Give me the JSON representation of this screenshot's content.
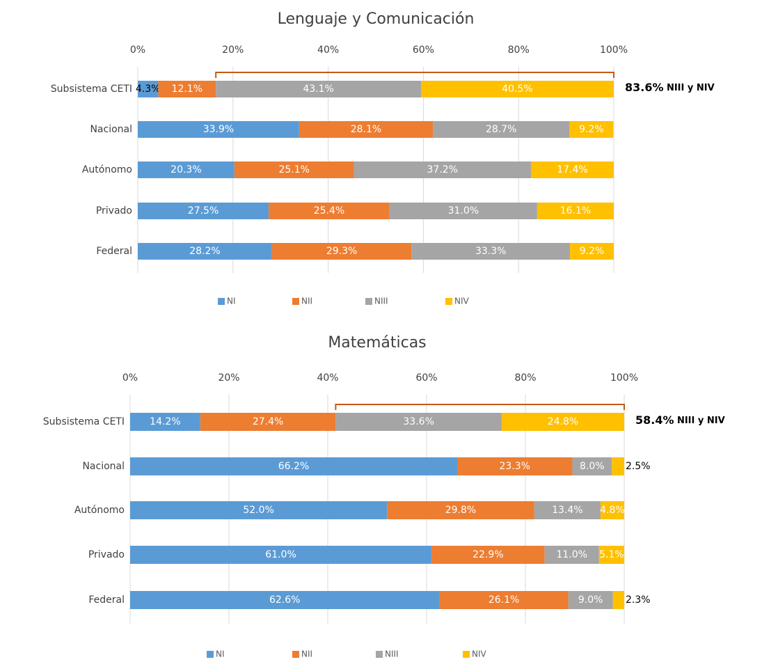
{
  "chart_data": [
    {
      "type": "stacked-bar",
      "title": "Lenguaje y Comunicación",
      "categories": [
        "Subsistema CETI",
        "Nacional",
        "Autónomo",
        "Privado",
        "Federal"
      ],
      "series": [
        {
          "name": "NI",
          "color": "#5b9bd5",
          "values": [
            4.3,
            33.9,
            20.3,
            27.5,
            28.2
          ],
          "value_labels": [
            "4.3%",
            "33.9%",
            "20.3%",
            "27.5%",
            "28.2%"
          ]
        },
        {
          "name": "NII",
          "color": "#ed7d31",
          "values": [
            12.1,
            28.1,
            25.1,
            25.4,
            29.3
          ],
          "value_labels": [
            "12.1%",
            "28.1%",
            "25.1%",
            "25.4%",
            "29.3%"
          ]
        },
        {
          "name": "NIII",
          "color": "#a5a5a5",
          "values": [
            43.1,
            28.7,
            37.2,
            31.0,
            33.3
          ],
          "value_labels": [
            "43.1%",
            "28.7%",
            "37.2%",
            "31.0%",
            "33.3%"
          ]
        },
        {
          "name": "NIV",
          "color": "#ffc000",
          "values": [
            40.5,
            9.2,
            17.4,
            16.1,
            9.2
          ],
          "value_labels": [
            "40.5%",
            "9.2%",
            "17.4%",
            "16.1%",
            "9.2%"
          ]
        }
      ],
      "xlim": [
        0,
        100
      ],
      "xticks": [
        {
          "value": 0,
          "label": "0%"
        },
        {
          "value": 20,
          "label": "20%"
        },
        {
          "value": 40,
          "label": "40%"
        },
        {
          "value": 60,
          "label": "60%"
        },
        {
          "value": 80,
          "label": "80%"
        },
        {
          "value": 100,
          "label": "100%"
        }
      ],
      "grid": true,
      "annotation": {
        "label": "83.6%",
        "text": "NIII y NIV"
      }
    },
    {
      "type": "stacked-bar",
      "title": "Matemáticas",
      "categories": [
        "Subsistema CETI",
        "Nacional",
        "Autónomo",
        "Privado",
        "Federal"
      ],
      "series": [
        {
          "name": "NI",
          "color": "#5b9bd5",
          "values": [
            14.2,
            66.2,
            52.0,
            61.0,
            62.6
          ],
          "value_labels": [
            "14.2%",
            "66.2%",
            "52.0%",
            "61.0%",
            "62.6%"
          ]
        },
        {
          "name": "NII",
          "color": "#ed7d31",
          "values": [
            27.4,
            23.3,
            29.8,
            22.9,
            26.1
          ],
          "value_labels": [
            "27.4%",
            "23.3%",
            "29.8%",
            "22.9%",
            "26.1%"
          ]
        },
        {
          "name": "NIII",
          "color": "#a5a5a5",
          "values": [
            33.6,
            8.0,
            13.4,
            11.0,
            9.0
          ],
          "value_labels": [
            "33.6%",
            "8.0%",
            "13.4%",
            "11.0%",
            "9.0%"
          ]
        },
        {
          "name": "NIV",
          "color": "#ffc000",
          "values": [
            24.8,
            2.5,
            4.8,
            5.1,
            2.3
          ],
          "value_labels": [
            "24.8%",
            "2.5%",
            "4.8%",
            "5.1%",
            "2.3%"
          ]
        }
      ],
      "xlim": [
        0,
        100
      ],
      "xticks": [
        {
          "value": 0,
          "label": "0%"
        },
        {
          "value": 20,
          "label": "20%"
        },
        {
          "value": 40,
          "label": "40%"
        },
        {
          "value": 60,
          "label": "60%"
        },
        {
          "value": 80,
          "label": "80%"
        },
        {
          "value": 100,
          "label": "100%"
        }
      ],
      "grid": true,
      "annotation": {
        "label": "58.4%",
        "text": "NIII y NIV"
      }
    }
  ]
}
